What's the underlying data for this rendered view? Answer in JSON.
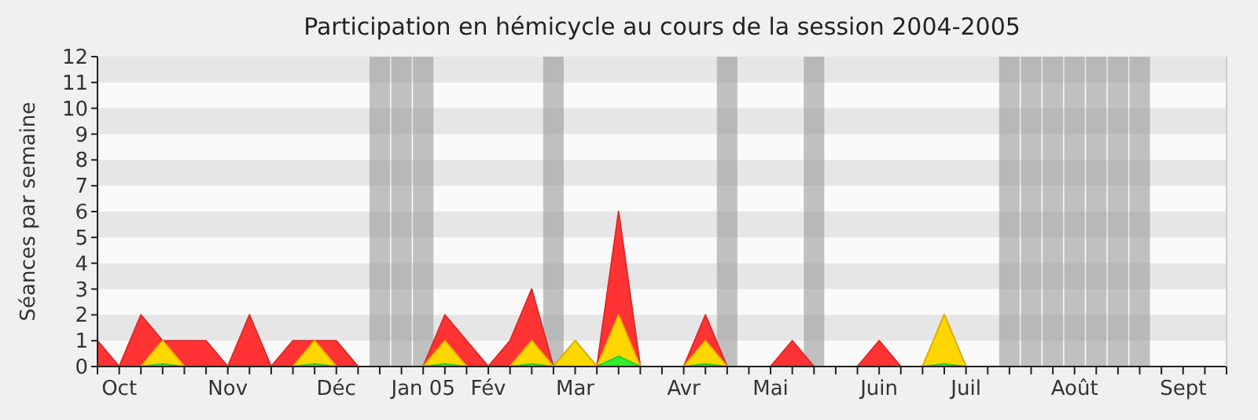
{
  "chart_data": {
    "type": "area",
    "title": "Participation en hémicycle au cours de la session 2004-2005",
    "ylabel": "Séances par semaine",
    "categories": [
      null,
      "Oct",
      null,
      null,
      null,
      null,
      "Nov",
      null,
      null,
      null,
      null,
      "Déc",
      null,
      null,
      null,
      "Jan 05",
      null,
      null,
      "Fév",
      null,
      null,
      null,
      "Mar",
      null,
      null,
      null,
      null,
      "Avr",
      null,
      null,
      null,
      "Mai",
      null,
      null,
      null,
      null,
      "Juin",
      null,
      null,
      null,
      "Juil",
      null,
      null,
      null,
      null,
      "Août",
      null,
      null,
      null,
      null,
      "Sept",
      null,
      null
    ],
    "series": [
      {
        "type": "bar",
        "color": "#999999",
        "values": [
          null,
          null,
          null,
          null,
          null,
          null,
          null,
          null,
          null,
          null,
          null,
          null,
          null,
          12,
          12,
          12,
          null,
          null,
          null,
          null,
          null,
          12,
          null,
          null,
          null,
          null,
          null,
          null,
          null,
          12,
          null,
          null,
          null,
          12,
          null,
          null,
          null,
          null,
          null,
          null,
          null,
          null,
          12,
          12,
          12,
          12,
          12,
          12,
          12,
          null,
          null,
          null,
          null
        ]
      },
      {
        "color": "#ff3333",
        "values": [
          1,
          0,
          2,
          1,
          1,
          1,
          0,
          2,
          0,
          1,
          1,
          1,
          0,
          0,
          0,
          0,
          2,
          1,
          0,
          1,
          3,
          0,
          1,
          0,
          6,
          0,
          0,
          0,
          2,
          0,
          0,
          0,
          1,
          0,
          0,
          0,
          1,
          0,
          0,
          2,
          0,
          0,
          0,
          0,
          0,
          0,
          0,
          0,
          0,
          0,
          0,
          0,
          0
        ]
      },
      {
        "color": "#ffd700",
        "values": [
          0,
          0,
          0,
          1,
          0,
          0,
          0,
          0,
          0,
          0,
          1,
          0,
          0,
          0,
          0,
          0,
          1,
          0,
          0,
          0,
          1,
          0,
          1,
          0,
          2,
          0,
          0,
          0,
          1,
          0,
          0,
          0,
          0,
          0,
          0,
          0,
          0,
          0,
          0,
          2,
          0,
          0,
          0,
          0,
          0,
          0,
          0,
          0,
          0,
          0,
          0,
          0,
          0
        ]
      },
      {
        "color": "#33ee33",
        "values": [
          0,
          0,
          0,
          0.1,
          0,
          0,
          0,
          0,
          0,
          0,
          0.1,
          0,
          0,
          0,
          0,
          0,
          0.1,
          0,
          0,
          0,
          0.1,
          0,
          0,
          0,
          0.4,
          0,
          0,
          0,
          0.1,
          0,
          0,
          0,
          0,
          0,
          0,
          0,
          0,
          0,
          0,
          0.1,
          0,
          0,
          0,
          0,
          0,
          0,
          0,
          0,
          0,
          0,
          0,
          0,
          0
        ]
      }
    ],
    "ylim": [
      0,
      12
    ],
    "yticks": [
      0,
      1,
      2,
      3,
      4,
      5,
      6,
      7,
      8,
      9,
      10,
      11,
      12
    ],
    "bands": [
      {
        "axis": "y",
        "from": 1,
        "to": 2,
        "color": "#e6e6e6"
      },
      {
        "axis": "y",
        "from": 3,
        "to": 4,
        "color": "#e6e6e6"
      },
      {
        "axis": "y",
        "from": 5,
        "to": 6,
        "color": "#e6e6e6"
      },
      {
        "axis": "y",
        "from": 7,
        "to": 8,
        "color": "#e6e6e6"
      },
      {
        "axis": "y",
        "from": 9,
        "to": 10,
        "color": "#e6e6e6"
      },
      {
        "axis": "y",
        "from": 11,
        "to": 12,
        "color": "#e6e6e6"
      }
    ]
  }
}
